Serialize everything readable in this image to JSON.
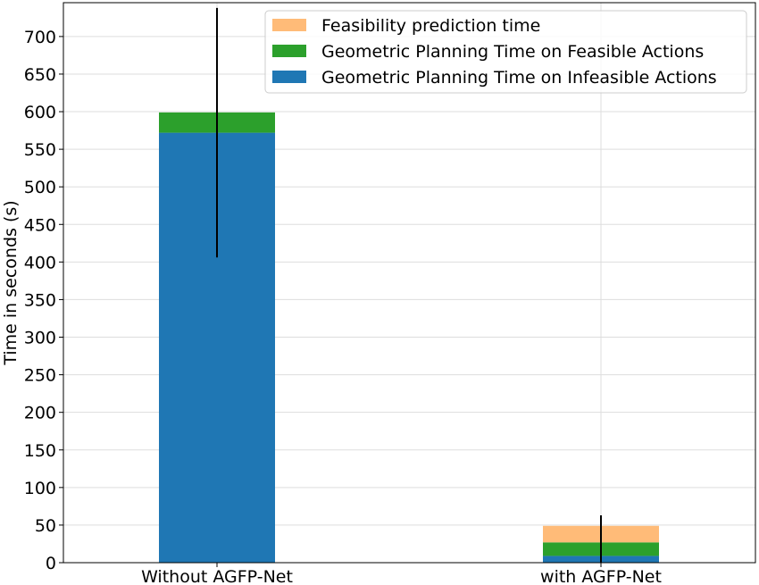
{
  "chart_data": {
    "type": "bar",
    "stacked": true,
    "categories": [
      "Without AGFP-Net",
      "with AGFP-Net"
    ],
    "series": [
      {
        "name": "Geometric Planning Time on Infeasible Actions",
        "values": [
          572,
          9
        ],
        "color": "#1f77b4"
      },
      {
        "name": "Geometric Planning Time on Feasible Actions",
        "values": [
          27,
          18
        ],
        "color": "#2ca02c"
      },
      {
        "name": "Feasibility prediction time",
        "values": [
          0,
          22
        ],
        "color": "#ffbb78"
      }
    ],
    "error_bars": [
      {
        "category": "Without AGFP-Net",
        "center": 572,
        "low": 406,
        "high": 738
      },
      {
        "category": "with AGFP-Net",
        "center": 27,
        "low": 0,
        "high": 63
      }
    ],
    "legend_order": [
      "Feasibility prediction time",
      "Geometric Planning Time on Feasible Actions",
      "Geometric Planning Time on Infeasible Actions"
    ],
    "legend_position": "top-right",
    "title": "",
    "xlabel": "",
    "ylabel": "Time in seconds (s)",
    "ylim": [
      0,
      745
    ],
    "yticks": [
      0,
      50,
      100,
      150,
      200,
      250,
      300,
      350,
      400,
      450,
      500,
      550,
      600,
      650,
      700
    ],
    "grid": true
  }
}
